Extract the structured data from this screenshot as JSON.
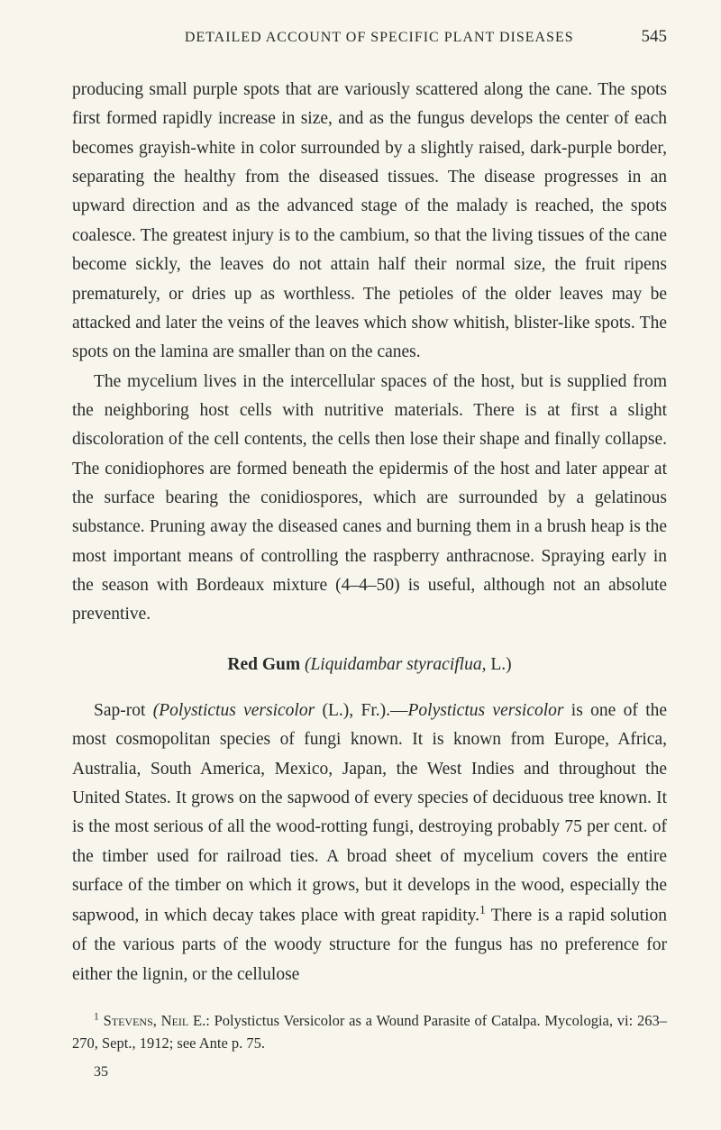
{
  "header": {
    "title": "DETAILED ACCOUNT OF SPECIFIC PLANT DISEASES",
    "pageNumber": "545"
  },
  "paragraphs": {
    "p1": "producing small purple spots that are variously scattered along the cane. The spots first formed rapidly increase in size, and as the fungus develops the center of each becomes grayish-white in color surrounded by a slightly raised, dark-purple border, separating the healthy from the diseased tissues. The disease progresses in an upward direction and as the advanced stage of the malady is reached, the spots coalesce. The greatest injury is to the cambium, so that the living tissues of the cane become sickly, the leaves do not attain half their normal size, the fruit ripens prematurely, or dries up as worthless. The petioles of the older leaves may be attacked and later the veins of the leaves which show whitish, blister-like spots. The spots on the lamina are smaller than on the canes.",
    "p2": "The mycelium lives in the intercellular spaces of the host, but is supplied from the neighboring host cells with nutritive materials. There is at first a slight discoloration of the cell contents, the cells then lose their shape and finally collapse. The conidiophores are formed beneath the epidermis of the host and later appear at the surface bearing the conidiospores, which are surrounded by a gelatinous substance. Pruning away the diseased canes and burning them in a brush heap is the most important means of controlling the raspberry anthracnose. Spraying early in the season with Bordeaux mixture (4–4–50) is useful, although not an absolute preventive.",
    "heading": {
      "bold": "Red Gum",
      "italic": "(Liquidambar styraciflua,",
      "suffix": " L.)"
    },
    "p3_prefix": "Sap-rot ",
    "p3_italic1": "(Polystictus versicolor",
    "p3_mid": " (L.), Fr.).—",
    "p3_italic2": "Polystictus versicolor",
    "p3_body": " is one of the most cosmopolitan species of fungi known. It is known from Europe, Africa, Australia, South America, Mexico, Japan, the West Indies and throughout the United States. It grows on the sapwood of every species of deciduous tree known. It is the most serious of all the wood-rotting fungi, destroying probably 75 per cent. of the timber used for railroad ties. A broad sheet of mycelium covers the entire surface of the timber on which it grows, but it develops in the wood, especially the sapwood, in which decay takes place with great rapidity.",
    "p3_sup": "1",
    "p3_end": " There is a rapid solution of the various parts of the woody structure for the fungus has no preference for either the lignin, or the cellulose"
  },
  "footnote": {
    "sup": "1",
    "authors": " Stevens, Neil",
    "rest": " E.: Polystictus Versicolor as a Wound Parasite of Catalpa. Mycologia, vi: 263–270, Sept., 1912; see Ante p. 75."
  },
  "signatureNumber": "35"
}
